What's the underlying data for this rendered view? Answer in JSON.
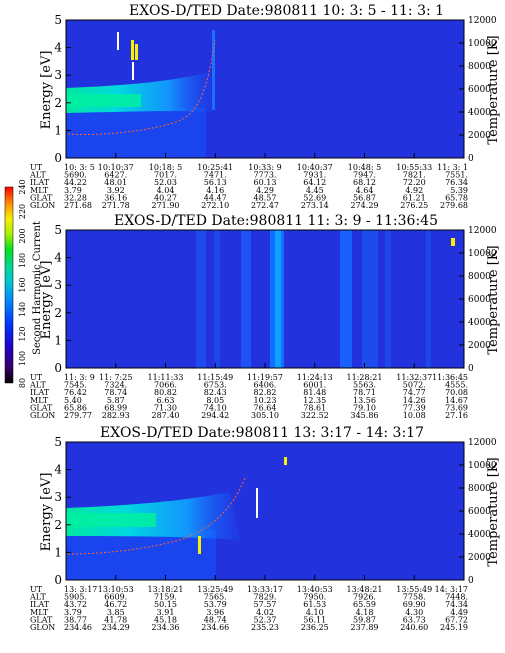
{
  "colorbar": {
    "label": "Second Harmonic Current",
    "ticks": [
      "80",
      "100",
      "120",
      "140",
      "160",
      "180",
      "200",
      "220",
      "240"
    ],
    "colors": [
      "#000000",
      "#3b006b",
      "#2200c8",
      "#0033ff",
      "#0088ff",
      "#00c8d0",
      "#00d890",
      "#00e020",
      "#a8f000",
      "#f8f000",
      "#ff8800",
      "#ff0000"
    ]
  },
  "chart_data": [
    {
      "type": "heatmap",
      "title": "EXOS-D/TED   Date:980811  10: 3: 5 - 11: 3: 1",
      "ylabel": "Energy [eV]",
      "y2label": "Temperature [K]",
      "ylim": [
        0,
        5
      ],
      "yticks": [
        "0",
        "1",
        "2",
        "3",
        "4",
        "5"
      ],
      "y2lim": [
        0,
        12000
      ],
      "y2ticks": [
        "0",
        "2000",
        "4000",
        "6000",
        "8000",
        "10000",
        "12000"
      ],
      "table": {
        "rows": [
          "UT",
          "ALT",
          "ILAT",
          "MLT",
          "GLAT",
          "GLON"
        ],
        "columns": [
          [
            "10: 3: 5",
            "5690.",
            "44.22",
            "3.79",
            "32.28",
            "271.68"
          ],
          [
            "10:10:37",
            "6427.",
            "48.01",
            "3.92",
            "36.16",
            "271.78"
          ],
          [
            "10:18: 5",
            "7017.",
            "52.03",
            "4.04",
            "40.27",
            "271.90"
          ],
          [
            "10:25:41",
            "7471.",
            "56.13",
            "4.16",
            "44.47",
            "272.10"
          ],
          [
            "10:33: 9",
            "7773.",
            "60.13",
            "4.29",
            "48.57",
            "272.47"
          ],
          [
            "10:40:37",
            "7931.",
            "64.12",
            "4.45",
            "52.69",
            "273.14"
          ],
          [
            "10:48: 5",
            "7947.",
            "68.12",
            "4.64",
            "56.87",
            "274.29"
          ],
          [
            "10:55:33",
            "7821.",
            "72.20",
            "4.92",
            "61.21",
            "276.25"
          ],
          [
            "11: 3: 1",
            "7551.",
            "76.34",
            "5.39",
            "65.78",
            "279.68"
          ]
        ]
      }
    },
    {
      "type": "heatmap",
      "title": "EXOS-D/TED   Date:980811  11: 3: 9 - 11:36:45",
      "ylabel": "Energy [eV]",
      "y2label": "Temperature [K]",
      "ylim": [
        0,
        5
      ],
      "yticks": [
        "0",
        "1",
        "2",
        "3",
        "4",
        "5"
      ],
      "y2lim": [
        0,
        12000
      ],
      "y2ticks": [
        "0",
        "2000",
        "4000",
        "6000",
        "8000",
        "10000",
        "12000"
      ],
      "table": {
        "rows": [
          "UT",
          "ALT",
          "ILAT",
          "MLT",
          "GLAT",
          "GLON"
        ],
        "columns": [
          [
            "11: 3: 9",
            "7545.",
            "76.42",
            "5.40",
            "65.86",
            "279.77"
          ],
          [
            "11: 7:25",
            "7324.",
            "78.74",
            "5.87",
            "68.99",
            "282.93"
          ],
          [
            "11:11:33",
            "7066.",
            "80.82",
            "6.63",
            "71.30",
            "287.40"
          ],
          [
            "11:15:49",
            "6753.",
            "82.43",
            "8.05",
            "74.10",
            "294.42"
          ],
          [
            "11:19:57",
            "6406.",
            "82.82",
            "10.23",
            "76.64",
            "305.10"
          ],
          [
            "11:24:13",
            "6001.",
            "81.48",
            "12.35",
            "78.61",
            "322.52"
          ],
          [
            "11:28:21",
            "5563.",
            "78.71",
            "13.56",
            "79.10",
            "345.86"
          ],
          [
            "11:32:37",
            "5072.",
            "74.77",
            "14.26",
            "77.39",
            "10.08"
          ],
          [
            "11:36:45",
            "4555.",
            "70.08",
            "14.67",
            "73.69",
            "27.16"
          ]
        ]
      }
    },
    {
      "type": "heatmap",
      "title": "EXOS-D/TED   Date:980811  13: 3:17 - 14: 3:17",
      "ylabel": "Energy [eV]",
      "y2label": "Temperature [K]",
      "ylim": [
        0,
        5
      ],
      "yticks": [
        "0",
        "1",
        "2",
        "3",
        "4",
        "5"
      ],
      "y2lim": [
        0,
        12000
      ],
      "y2ticks": [
        "0",
        "2000",
        "4000",
        "6000",
        "8000",
        "10000",
        "12000"
      ],
      "table": {
        "rows": [
          "UT",
          "ALT",
          "ILAT",
          "MLT",
          "GLAT",
          "GLON"
        ],
        "columns": [
          [
            "13: 3:17",
            "5905.",
            "43.72",
            "3.79",
            "38.77",
            "234.46"
          ],
          [
            "13:10:53",
            "6609.",
            "46.72",
            "3.85",
            "41.78",
            "234.29"
          ],
          [
            "13:18:21",
            "7159.",
            "50.15",
            "3.91",
            "45.18",
            "234.36"
          ],
          [
            "13:25:49",
            "7565.",
            "53.79",
            "3.96",
            "48.74",
            "234.66"
          ],
          [
            "13:33:17",
            "7829.",
            "57.57",
            "4.02",
            "52.37",
            "235.23"
          ],
          [
            "13:40:53",
            "7950.",
            "61.53",
            "4.10",
            "56.11",
            "236.25"
          ],
          [
            "13:48:21",
            "7926.",
            "65.59",
            "4.18",
            "59.87",
            "237.89"
          ],
          [
            "13:55:49",
            "7758.",
            "69.90",
            "4.30",
            "63.73",
            "240.60"
          ],
          [
            "14: 3:17",
            "7448.",
            "74.34",
            "4.49",
            "67.72",
            "245.19"
          ]
        ]
      }
    }
  ]
}
